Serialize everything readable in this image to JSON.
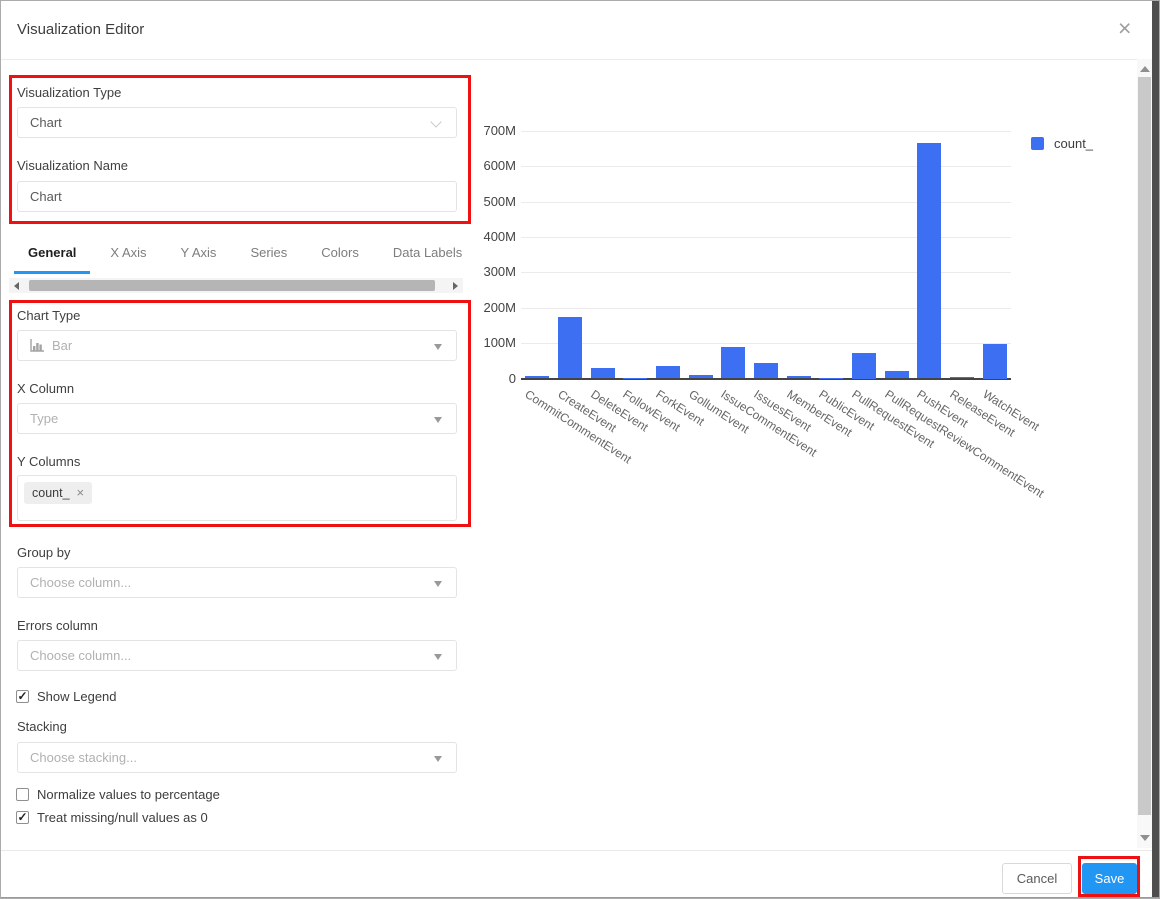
{
  "dialog": {
    "title": "Visualization Editor",
    "close_glyph": "×"
  },
  "form": {
    "visualization_type": {
      "label": "Visualization Type",
      "value": "Chart"
    },
    "visualization_name": {
      "label": "Visualization Name",
      "value": "Chart"
    },
    "tabs": [
      {
        "label": "General",
        "active": true
      },
      {
        "label": "X Axis",
        "active": false
      },
      {
        "label": "Y Axis",
        "active": false
      },
      {
        "label": "Series",
        "active": false
      },
      {
        "label": "Colors",
        "active": false
      },
      {
        "label": "Data Labels",
        "active": false
      }
    ],
    "chart_type": {
      "label": "Chart Type",
      "value": "Bar"
    },
    "x_column": {
      "label": "X Column",
      "value": "Type"
    },
    "y_columns": {
      "label": "Y Columns",
      "tags": [
        {
          "label": "count_",
          "remove_glyph": "×"
        }
      ]
    },
    "group_by": {
      "label": "Group by",
      "placeholder": "Choose column..."
    },
    "errors_column": {
      "label": "Errors column",
      "placeholder": "Choose column..."
    },
    "show_legend": {
      "label": "Show Legend",
      "checked": true
    },
    "stacking": {
      "label": "Stacking",
      "placeholder": "Choose stacking..."
    },
    "normalize": {
      "label": "Normalize values to percentage",
      "checked": false
    },
    "treat_missing": {
      "label": "Treat missing/null values as 0",
      "checked": true
    }
  },
  "footer": {
    "cancel_label": "Cancel",
    "save_label": "Save"
  },
  "chart_data": {
    "type": "bar",
    "title": "",
    "xlabel": "",
    "ylabel": "",
    "categories": [
      "CommitCommentEvent",
      "CreateEvent",
      "DeleteEvent",
      "FollowEvent",
      "ForkEvent",
      "GollumEvent",
      "IssueCommentEvent",
      "IssuesEvent",
      "MemberEvent",
      "PublicEvent",
      "PullRequestEvent",
      "PullRequestReviewCommentEvent",
      "PushEvent",
      "ReleaseEvent",
      "WatchEvent"
    ],
    "series": [
      {
        "name": "count_",
        "color": "#3d6ff2",
        "values_millions": [
          8,
          175,
          30,
          1,
          35,
          9,
          90,
          45,
          6,
          2,
          72,
          22,
          665,
          5,
          99
        ]
      }
    ],
    "y_ticks_labels": [
      "0",
      "100M",
      "200M",
      "300M",
      "400M",
      "500M",
      "600M",
      "700M"
    ],
    "ylim_millions": [
      0,
      700
    ],
    "grid": true,
    "x_tick_rotation_deg": -33,
    "legend": {
      "position": "top-right",
      "entries": [
        "count_"
      ]
    }
  },
  "colors": {
    "bar_blue": "#3d6ff2",
    "accent_blue": "#2196f3",
    "highlight_red": "#ee1111"
  }
}
